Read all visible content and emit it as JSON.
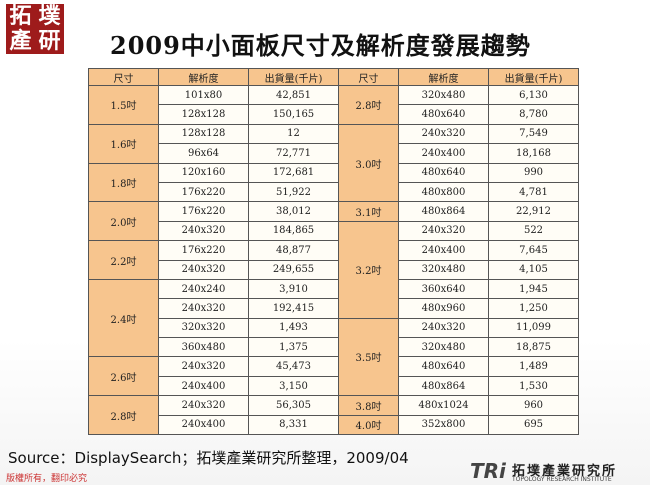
{
  "logo": {
    "chars": [
      "拓",
      "墣",
      "產",
      "研"
    ]
  },
  "title": "2009中小面板尺寸及解析度發展趨勢",
  "table": {
    "header": [
      "尺寸",
      "解析度",
      "出貨量(千片)",
      "尺寸",
      "解析度",
      "出貨量(千片)"
    ],
    "left_groups": [
      {
        "size": "1.5吋",
        "rows": [
          [
            "101x80",
            "42,851"
          ],
          [
            "128x128",
            "150,165"
          ]
        ]
      },
      {
        "size": "1.6吋",
        "rows": [
          [
            "128x128",
            "12"
          ],
          [
            "96x64",
            "72,771"
          ]
        ]
      },
      {
        "size": "1.8吋",
        "rows": [
          [
            "120x160",
            "172,681"
          ],
          [
            "176x220",
            "51,922"
          ]
        ]
      },
      {
        "size": "2.0吋",
        "rows": [
          [
            "176x220",
            "38,012"
          ],
          [
            "240x320",
            "184,865"
          ]
        ]
      },
      {
        "size": "2.2吋",
        "rows": [
          [
            "176x220",
            "48,877"
          ],
          [
            "240x320",
            "249,655"
          ]
        ]
      },
      {
        "size": "2.4吋",
        "rows": [
          [
            "240x240",
            "3,910"
          ],
          [
            "240x320",
            "192,415"
          ],
          [
            "320x320",
            "1,493"
          ],
          [
            "360x480",
            "1,375"
          ]
        ]
      },
      {
        "size": "2.6吋",
        "rows": [
          [
            "240x320",
            "45,473"
          ],
          [
            "240x400",
            "3,150"
          ]
        ]
      },
      {
        "size": "2.8吋",
        "rows": [
          [
            "240x320",
            "56,305"
          ],
          [
            "240x400",
            "8,331"
          ]
        ]
      }
    ],
    "right_groups": [
      {
        "size": "2.8吋",
        "rows": [
          [
            "320x480",
            "6,130"
          ],
          [
            "480x640",
            "8,780"
          ]
        ]
      },
      {
        "size": "3.0吋",
        "rows": [
          [
            "240x320",
            "7,549"
          ],
          [
            "240x400",
            "18,168"
          ],
          [
            "480x640",
            "990"
          ],
          [
            "480x800",
            "4,781"
          ]
        ]
      },
      {
        "size": "3.1吋",
        "rows": [
          [
            "480x864",
            "22,912"
          ]
        ]
      },
      {
        "size": "3.2吋",
        "rows": [
          [
            "240x320",
            "522"
          ],
          [
            "240x400",
            "7,645"
          ],
          [
            "320x480",
            "4,105"
          ],
          [
            "360x640",
            "1,945"
          ],
          [
            "480x960",
            "1,250"
          ]
        ]
      },
      {
        "size": "3.5吋",
        "rows": [
          [
            "240x320",
            "11,099"
          ],
          [
            "320x480",
            "18,875"
          ],
          [
            "480x640",
            "1,489"
          ],
          [
            "480x864",
            "1,530"
          ]
        ]
      },
      {
        "size": "3.8吋",
        "rows": [
          [
            "480x1024",
            "960"
          ]
        ]
      },
      {
        "size": "4.0吋",
        "rows": [
          [
            "352x800",
            "695"
          ]
        ]
      }
    ]
  },
  "source": "Source：DisplaySearch；拓墣產業研究所整理，2009/04",
  "footer": {
    "copyright": "版權所有，翻印必究",
    "brand": "TRi",
    "brand_name": "拓墣產業研究所",
    "brand_en": "TOPOLOGY RESEARCH INSTITUTE"
  }
}
